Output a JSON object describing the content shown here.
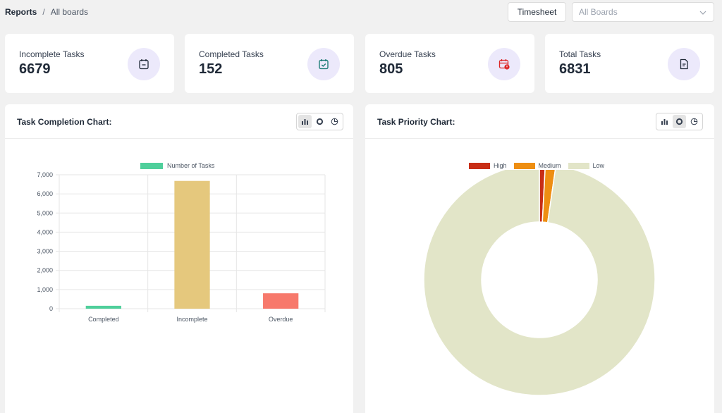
{
  "breadcrumb": {
    "root": "Reports",
    "separator": "/",
    "current": "All boards"
  },
  "toolbar": {
    "timesheet_label": "Timesheet",
    "boards_select_placeholder": "All Boards"
  },
  "stats": [
    {
      "label": "Incomplete Tasks",
      "value": "6679",
      "icon": "calendar-minus-icon",
      "icon_color": "#1f2937"
    },
    {
      "label": "Completed Tasks",
      "value": "152",
      "icon": "calendar-check-icon",
      "icon_color": "#0f766e"
    },
    {
      "label": "Overdue Tasks",
      "value": "805",
      "icon": "calendar-alert-icon",
      "icon_color": "#dc2626"
    },
    {
      "label": "Total Tasks",
      "value": "6831",
      "icon": "document-icon",
      "icon_color": "#1f2937"
    }
  ],
  "panels": {
    "completion": {
      "title": "Task Completion Chart:",
      "active_view": "bar"
    },
    "priority": {
      "title": "Task Priority Chart:",
      "active_view": "doughnut"
    }
  },
  "chart_data": [
    {
      "type": "bar",
      "title": "Task Completion Chart:",
      "categories": [
        "Completed",
        "Incomplete",
        "Overdue"
      ],
      "series": [
        {
          "name": "Number of Tasks",
          "values": [
            152,
            6679,
            805
          ]
        }
      ],
      "bar_colors": [
        "#4fcf9b",
        "#e5c87d",
        "#f7796c"
      ],
      "legend_color": "#4fcf9b",
      "ylim": [
        0,
        7000
      ],
      "yticks": [
        "7,000",
        "6,000",
        "5,000",
        "4,000",
        "3,000",
        "2,000",
        "1,000",
        "0"
      ],
      "grid": true,
      "legend_position": "top"
    },
    {
      "type": "pie",
      "subtype": "doughnut",
      "title": "Task Priority Chart:",
      "labels": [
        "High",
        "Medium",
        "Low"
      ],
      "values": [
        56,
        100,
        6675
      ],
      "colors": [
        "#c82e16",
        "#ee8e12",
        "#e2e5c8"
      ],
      "legend_position": "top"
    }
  ]
}
